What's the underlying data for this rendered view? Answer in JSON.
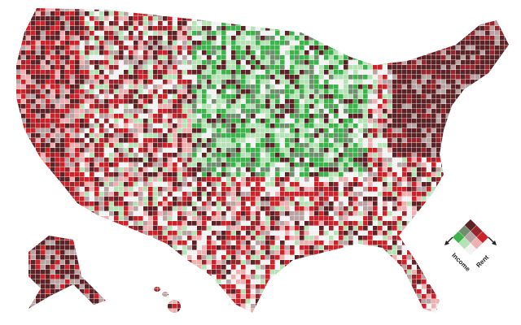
{
  "legend": {
    "x_label": "Income",
    "y_label": "Rent",
    "colors": [
      [
        "#f2f2f2",
        "#b6e3b6",
        "#3cb44b"
      ],
      [
        "#eeb0b0",
        "#b9a3a3",
        "#6f8f6f"
      ],
      [
        "#cc2229",
        "#96262c",
        "#5c2326"
      ]
    ]
  }
}
